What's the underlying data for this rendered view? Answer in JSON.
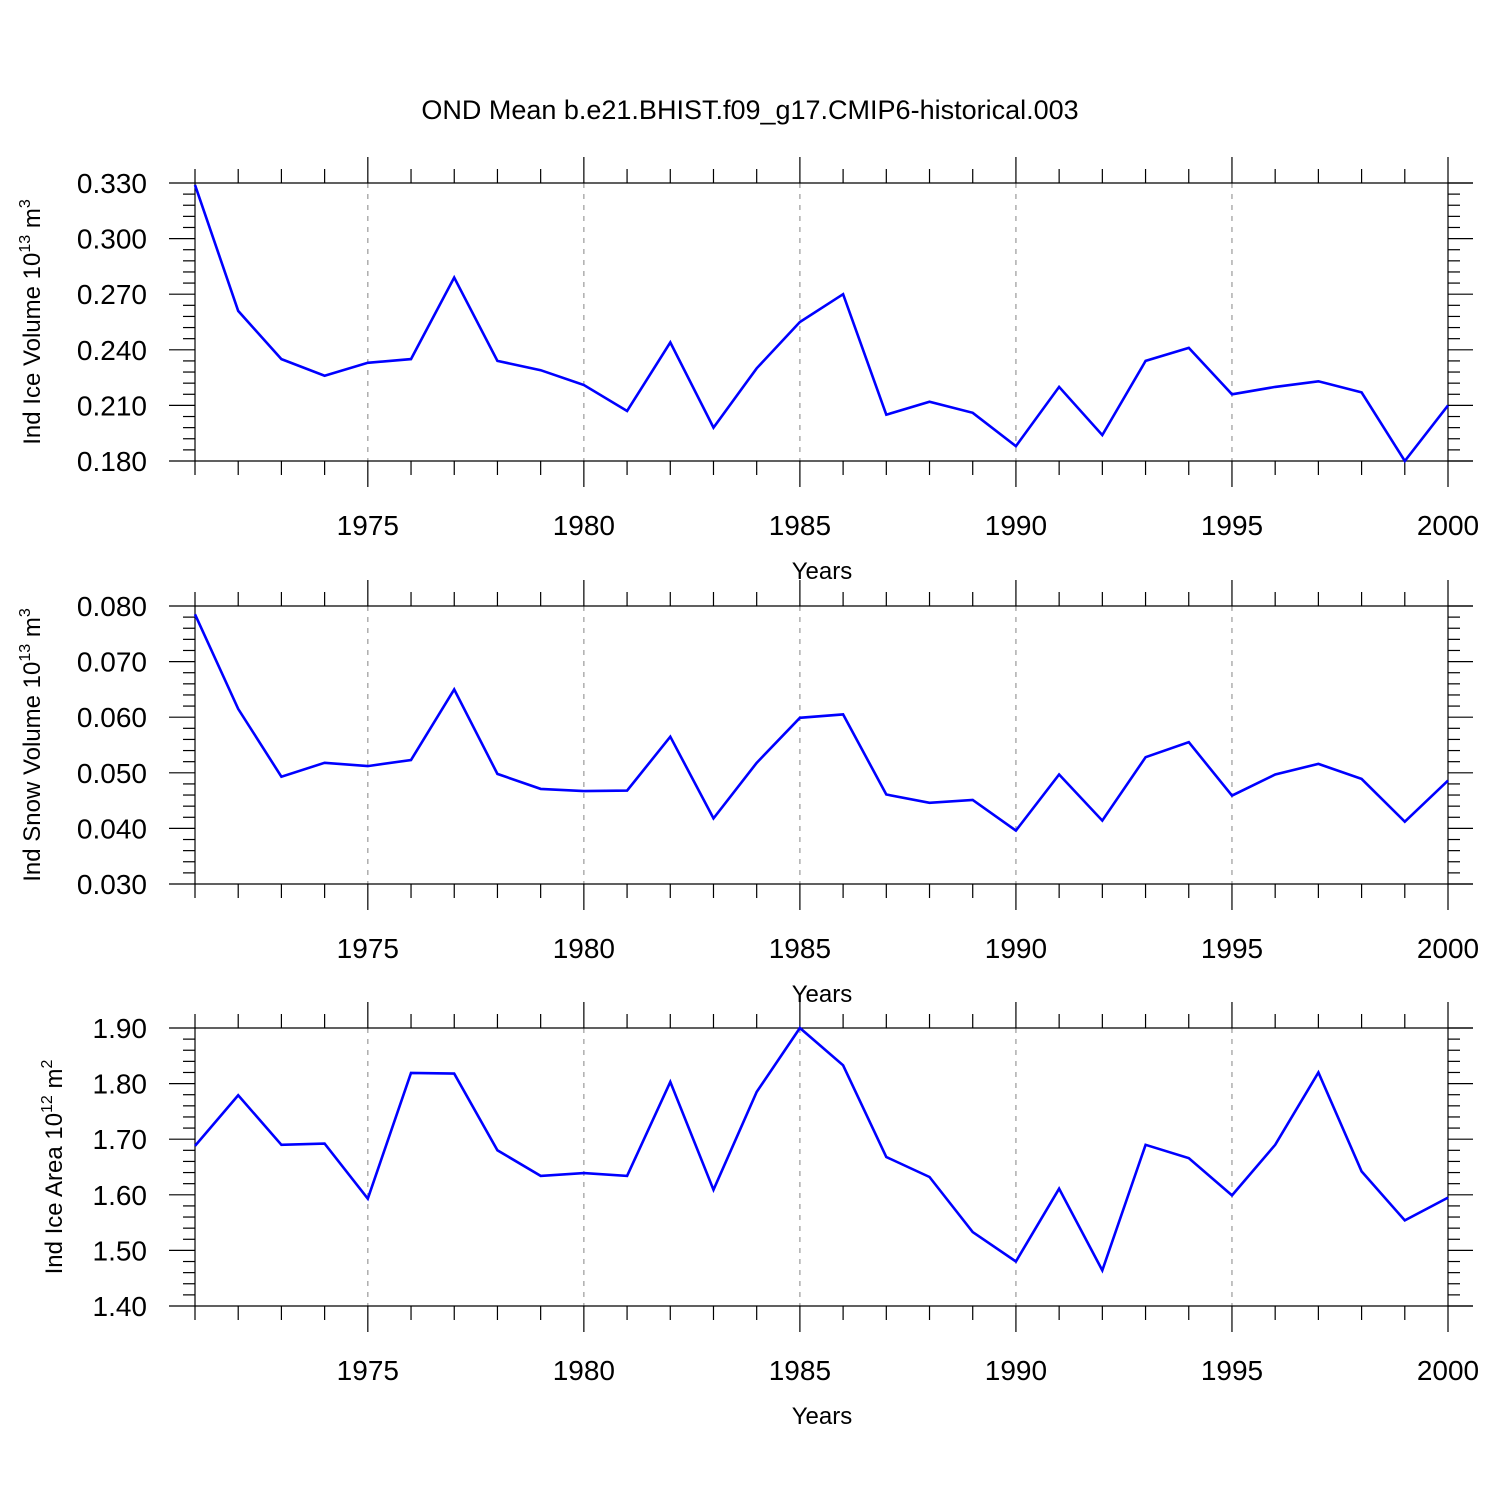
{
  "title": "OND Mean b.e21.BHIST.f09_g17.CMIP6-historical.003",
  "colors": {
    "line": "#0000ff",
    "grid": "#999999",
    "axis": "#000000"
  },
  "chart_data": [
    {
      "type": "line",
      "ylabel": "Ind Ice Volume 10",
      "ylabel_exp": "13",
      "ylabel_unit": " m",
      "ylabel_unit_exp": "3",
      "xlabel": "Years",
      "xlim": [
        1971,
        2000
      ],
      "ylim": [
        0.18,
        0.33
      ],
      "yticks": [
        0.18,
        0.21,
        0.24,
        0.27,
        0.3,
        0.33
      ],
      "ytick_labels": [
        "0.180",
        "0.210",
        "0.240",
        "0.270",
        "0.300",
        "0.330"
      ],
      "xticks": [
        1975,
        1980,
        1985,
        1990,
        1995,
        2000
      ],
      "xtick_labels": [
        "1975",
        "1980",
        "1985",
        "1990",
        "1995",
        "2000"
      ],
      "grid": "vertical dashed at major x ticks",
      "x": [
        1971,
        1972,
        1973,
        1974,
        1975,
        1976,
        1977,
        1978,
        1979,
        1980,
        1981,
        1982,
        1983,
        1984,
        1985,
        1986,
        1987,
        1988,
        1989,
        1990,
        1991,
        1992,
        1993,
        1994,
        1995,
        1996,
        1997,
        1998,
        1999,
        2000
      ],
      "values": [
        0.329,
        0.261,
        0.235,
        0.226,
        0.233,
        0.235,
        0.279,
        0.234,
        0.229,
        0.221,
        0.207,
        0.244,
        0.198,
        0.23,
        0.255,
        0.27,
        0.205,
        0.212,
        0.206,
        0.188,
        0.22,
        0.194,
        0.234,
        0.241,
        0.216,
        0.22,
        0.223,
        0.217,
        0.18,
        0.21
      ]
    },
    {
      "type": "line",
      "ylabel": "Ind Snow Volume 10",
      "ylabel_exp": "13",
      "ylabel_unit": " m",
      "ylabel_unit_exp": "3",
      "xlabel": "Years",
      "xlim": [
        1971,
        2000
      ],
      "ylim": [
        0.03,
        0.08
      ],
      "yticks": [
        0.03,
        0.04,
        0.05,
        0.06,
        0.07,
        0.08
      ],
      "ytick_labels": [
        "0.030",
        "0.040",
        "0.050",
        "0.060",
        "0.070",
        "0.080"
      ],
      "xticks": [
        1975,
        1980,
        1985,
        1990,
        1995,
        2000
      ],
      "xtick_labels": [
        "1975",
        "1980",
        "1985",
        "1990",
        "1995",
        "2000"
      ],
      "grid": "vertical dashed at major x ticks",
      "x": [
        1971,
        1972,
        1973,
        1974,
        1975,
        1976,
        1977,
        1978,
        1979,
        1980,
        1981,
        1982,
        1983,
        1984,
        1985,
        1986,
        1987,
        1988,
        1989,
        1990,
        1991,
        1992,
        1993,
        1994,
        1995,
        1996,
        1997,
        1998,
        1999,
        2000
      ],
      "values": [
        0.0785,
        0.0615,
        0.0493,
        0.0518,
        0.0512,
        0.0523,
        0.065,
        0.0498,
        0.0471,
        0.0467,
        0.0468,
        0.0565,
        0.0418,
        0.0518,
        0.0599,
        0.0605,
        0.0461,
        0.0446,
        0.0451,
        0.0396,
        0.0497,
        0.0414,
        0.0528,
        0.0555,
        0.0459,
        0.0497,
        0.0516,
        0.0489,
        0.0412,
        0.0486
      ]
    },
    {
      "type": "line",
      "ylabel": "Ind Ice Area 10",
      "ylabel_exp": "12",
      "ylabel_unit": " m",
      "ylabel_unit_exp": "2",
      "xlabel": "Years",
      "xlim": [
        1971,
        2000
      ],
      "ylim": [
        1.4,
        1.9
      ],
      "yticks": [
        1.4,
        1.5,
        1.6,
        1.7,
        1.8,
        1.9
      ],
      "ytick_labels": [
        "1.40",
        "1.50",
        "1.60",
        "1.70",
        "1.80",
        "1.90"
      ],
      "xticks": [
        1975,
        1980,
        1985,
        1990,
        1995,
        2000
      ],
      "xtick_labels": [
        "1975",
        "1980",
        "1985",
        "1990",
        "1995",
        "2000"
      ],
      "grid": "vertical dashed at major x ticks",
      "x": [
        1971,
        1972,
        1973,
        1974,
        1975,
        1976,
        1977,
        1978,
        1979,
        1980,
        1981,
        1982,
        1983,
        1984,
        1985,
        1986,
        1987,
        1988,
        1989,
        1990,
        1991,
        1992,
        1993,
        1994,
        1995,
        1996,
        1997,
        1998,
        1999,
        2000
      ],
      "values": [
        1.688,
        1.779,
        1.69,
        1.692,
        1.593,
        1.819,
        1.818,
        1.68,
        1.634,
        1.639,
        1.634,
        1.803,
        1.609,
        1.785,
        1.9,
        1.833,
        1.668,
        1.632,
        1.533,
        1.48,
        1.611,
        1.464,
        1.69,
        1.666,
        1.599,
        1.69,
        1.82,
        1.642,
        1.554,
        1.595
      ]
    }
  ]
}
